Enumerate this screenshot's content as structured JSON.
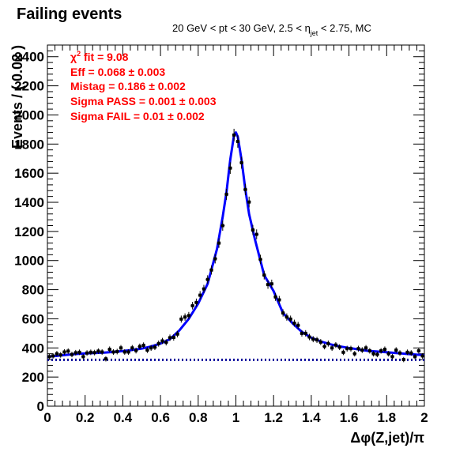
{
  "header": {
    "title": "Failing events",
    "subtitle_pre": "20 GeV < pt < 30 GeV, 2.5 < ",
    "subtitle_eta": "η",
    "subtitle_sub": "jet",
    "subtitle_post": " < 2.75, MC"
  },
  "fit_box": {
    "chi2_symbol": "χ",
    "chi2_power": "2",
    "chi2_text": " fit = 9.08",
    "lines": [
      "Eff = 0.068 ± 0.003",
      "Mistag = 0.186 ± 0.002",
      "Sigma PASS = 0.001 ± 0.003",
      "Sigma FAIL = 0.01 ± 0.002"
    ]
  },
  "colors": {
    "fit_text": "#ff0000",
    "fit_curve": "#0000ff",
    "background_curve": "#000099",
    "data_points": "#000000"
  },
  "chart_data": {
    "type": "scatter",
    "xlabel": "Δφ(Z,jet)/π",
    "ylabel": "Events / ( 0.02 )",
    "xlim": [
      0,
      2
    ],
    "ylim": [
      0,
      2480
    ],
    "x_ticks": [
      "0",
      "0.2",
      "0.4",
      "0.6",
      "0.8",
      "1",
      "1.2",
      "1.4",
      "1.6",
      "1.8",
      "2"
    ],
    "y_ticks": [
      "0",
      "200",
      "400",
      "600",
      "800",
      "1000",
      "1200",
      "1400",
      "1600",
      "1800",
      "2000",
      "2200",
      "2400"
    ],
    "background_level": 318,
    "series": [
      {
        "kind": "data",
        "x": [
          0.01,
          0.03,
          0.05,
          0.07,
          0.09,
          0.11,
          0.13,
          0.15,
          0.17,
          0.19,
          0.21,
          0.23,
          0.25,
          0.27,
          0.29,
          0.31,
          0.33,
          0.35,
          0.37,
          0.39,
          0.41,
          0.43,
          0.45,
          0.47,
          0.49,
          0.51,
          0.53,
          0.55,
          0.57,
          0.59,
          0.61,
          0.63,
          0.65,
          0.67,
          0.69,
          0.71,
          0.73,
          0.75,
          0.77,
          0.79,
          0.81,
          0.83,
          0.85,
          0.87,
          0.89,
          0.91,
          0.93,
          0.95,
          0.97,
          0.99,
          1.01,
          1.03,
          1.05,
          1.07,
          1.09,
          1.11,
          1.13,
          1.15,
          1.17,
          1.19,
          1.21,
          1.23,
          1.25,
          1.27,
          1.29,
          1.31,
          1.33,
          1.35,
          1.37,
          1.39,
          1.41,
          1.43,
          1.45,
          1.47,
          1.49,
          1.51,
          1.53,
          1.55,
          1.57,
          1.59,
          1.61,
          1.63,
          1.65,
          1.67,
          1.69,
          1.71,
          1.73,
          1.75,
          1.77,
          1.79,
          1.81,
          1.83,
          1.85,
          1.87,
          1.89,
          1.91,
          1.93,
          1.95,
          1.97,
          1.99
        ],
        "y": [
          340,
          345,
          360,
          352,
          372,
          378,
          355,
          367,
          370,
          340,
          365,
          370,
          368,
          378,
          372,
          325,
          390,
          372,
          375,
          400,
          372,
          372,
          400,
          382,
          410,
          418,
          385,
          400,
          405,
          430,
          448,
          438,
          470,
          472,
          495,
          598,
          612,
          622,
          690,
          712,
          762,
          805,
          870,
          935,
          1012,
          1120,
          1240,
          1455,
          1635,
          1862,
          1818,
          1672,
          1488,
          1402,
          1210,
          1180,
          1008,
          900,
          835,
          840,
          750,
          730,
          640,
          612,
          598,
          570,
          555,
          500,
          500,
          475,
          460,
          455,
          440,
          410,
          430,
          400,
          420,
          405,
          370,
          395,
          395,
          360,
          395,
          385,
          400,
          380,
          360,
          355,
          380,
          390,
          360,
          340,
          385,
          365,
          320,
          370,
          365,
          340,
          380,
          345
        ],
        "errors": [
          18,
          18,
          19,
          19,
          19,
          19,
          19,
          19,
          19,
          18,
          19,
          19,
          19,
          19,
          19,
          18,
          20,
          19,
          19,
          20,
          19,
          19,
          20,
          20,
          20,
          20,
          20,
          20,
          20,
          21,
          21,
          21,
          22,
          22,
          22,
          24,
          25,
          25,
          26,
          27,
          28,
          28,
          29,
          31,
          32,
          33,
          35,
          38,
          40,
          43,
          43,
          41,
          39,
          37,
          35,
          34,
          32,
          30,
          29,
          29,
          27,
          27,
          25,
          25,
          24,
          24,
          24,
          22,
          22,
          22,
          21,
          21,
          21,
          20,
          21,
          20,
          20,
          20,
          19,
          20,
          20,
          19,
          20,
          20,
          20,
          19,
          19,
          19,
          19,
          20,
          19,
          18,
          20,
          19,
          18,
          19,
          19,
          18,
          19,
          19
        ]
      },
      {
        "kind": "fit",
        "x": [
          0,
          0.05,
          0.1,
          0.15,
          0.2,
          0.25,
          0.3,
          0.35,
          0.4,
          0.45,
          0.5,
          0.55,
          0.6,
          0.65,
          0.7,
          0.75,
          0.8,
          0.85,
          0.9,
          0.93,
          0.95,
          0.97,
          0.99,
          1.0,
          1.01,
          1.03,
          1.05,
          1.07,
          1.1,
          1.15,
          1.2,
          1.25,
          1.3,
          1.35,
          1.4,
          1.45,
          1.5,
          1.55,
          1.6,
          1.65,
          1.7,
          1.75,
          1.8,
          1.85,
          1.9,
          1.95,
          2.0
        ],
        "y": [
          340,
          345,
          352,
          358,
          362,
          365,
          368,
          372,
          378,
          386,
          395,
          410,
          430,
          460,
          520,
          600,
          705,
          840,
          1080,
          1300,
          1470,
          1690,
          1860,
          1880,
          1850,
          1690,
          1490,
          1320,
          1150,
          900,
          790,
          640,
          570,
          510,
          470,
          445,
          425,
          410,
          400,
          390,
          380,
          375,
          370,
          365,
          360,
          355,
          350
        ]
      }
    ]
  }
}
